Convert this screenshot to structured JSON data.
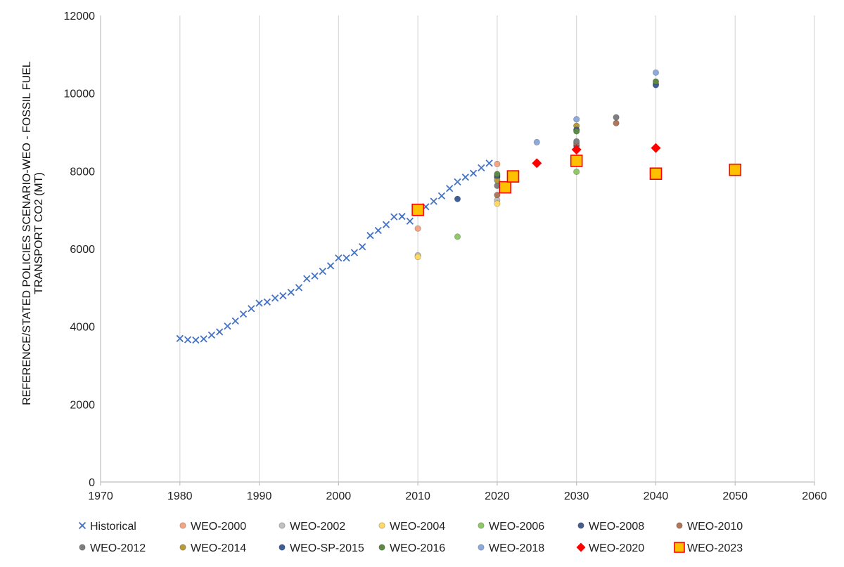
{
  "chart_data": {
    "type": "scatter",
    "title": "",
    "xlabel": "",
    "ylabel_lines": [
      "REFERENCE/STATED POLICIES SCENARIO-WEO - FOSSIL FUEL",
      "TRANSPORT CO2 (MT)"
    ],
    "xlim": [
      1970,
      2060
    ],
    "ylim": [
      0,
      12000
    ],
    "xticks": [
      1970,
      1980,
      1990,
      2000,
      2010,
      2020,
      2030,
      2040,
      2050,
      2060
    ],
    "yticks": [
      0,
      2000,
      4000,
      6000,
      8000,
      10000,
      12000
    ],
    "grid": "vertical",
    "legend_position": "bottom",
    "series": [
      {
        "name": "Historical",
        "marker": "x",
        "color": "#4472c4",
        "x": [
          1980,
          1981,
          1982,
          1983,
          1984,
          1985,
          1986,
          1987,
          1988,
          1989,
          1990,
          1991,
          1992,
          1993,
          1994,
          1995,
          1996,
          1997,
          1998,
          1999,
          2000,
          2001,
          2002,
          2003,
          2004,
          2005,
          2006,
          2007,
          2008,
          2009,
          2010,
          2011,
          2012,
          2013,
          2014,
          2015,
          2016,
          2017,
          2018,
          2019
        ],
        "y": [
          3690,
          3660,
          3650,
          3680,
          3780,
          3860,
          4010,
          4140,
          4320,
          4460,
          4600,
          4630,
          4730,
          4790,
          4880,
          5000,
          5230,
          5300,
          5420,
          5560,
          5760,
          5760,
          5900,
          6050,
          6340,
          6470,
          6620,
          6820,
          6830,
          6710,
          6960,
          7080,
          7220,
          7360,
          7550,
          7720,
          7840,
          7940,
          8080,
          8200
        ]
      },
      {
        "name": "WEO-2000",
        "marker": "circle",
        "color": "#f4a582",
        "x": [
          2010,
          2020
        ],
        "y": [
          6520,
          8180
        ]
      },
      {
        "name": "WEO-2002",
        "marker": "circle",
        "color": "#c0c0c0",
        "x": [
          2010,
          2020
        ],
        "y": [
          5830,
          7250
        ]
      },
      {
        "name": "WEO-2004",
        "marker": "circle",
        "color": "#ffd966",
        "x": [
          2010,
          2020
        ],
        "y": [
          5790,
          7160
        ]
      },
      {
        "name": "WEO-2006",
        "marker": "circle",
        "color": "#8fc965",
        "x": [
          2015,
          2030
        ],
        "y": [
          6310,
          7980
        ]
      },
      {
        "name": "WEO-2008",
        "marker": "circle",
        "color": "#4a5e8c",
        "x": [
          2020,
          2030
        ],
        "y": [
          7840,
          8650
        ]
      },
      {
        "name": "WEO-2010",
        "marker": "circle",
        "color": "#b0785a",
        "x": [
          2020,
          2030,
          2035
        ],
        "y": [
          7380,
          8710,
          9230
        ]
      },
      {
        "name": "WEO-2012",
        "marker": "circle",
        "color": "#7f7f7f",
        "x": [
          2020,
          2030,
          2035
        ],
        "y": [
          7620,
          8760,
          9380
        ]
      },
      {
        "name": "WEO-2014",
        "marker": "circle",
        "color": "#b89b3c",
        "x": [
          2020,
          2030,
          2040
        ],
        "y": [
          7760,
          9160,
          10230
        ]
      },
      {
        "name": "WEO-SP-2015",
        "marker": "circle",
        "color": "#3d5f99",
        "x": [
          2015,
          2020,
          2030,
          2040
        ],
        "y": [
          7280,
          7880,
          9060,
          10210
        ]
      },
      {
        "name": "WEO-2016",
        "marker": "circle",
        "color": "#5c8a46",
        "x": [
          2020,
          2030,
          2040
        ],
        "y": [
          7920,
          9020,
          10300
        ]
      },
      {
        "name": "WEO-2018",
        "marker": "circle",
        "color": "#8eaadb",
        "x": [
          2025,
          2030,
          2040
        ],
        "y": [
          8740,
          9330,
          10530
        ]
      },
      {
        "name": "WEO-2020",
        "marker": "diamond",
        "color": "#ff0000",
        "x": [
          2025,
          2030,
          2040
        ],
        "y": [
          8200,
          8550,
          8590
        ]
      },
      {
        "name": "WEO-2023",
        "marker": "square",
        "color": "#ffc000",
        "x": [
          2010,
          2021,
          2022,
          2030,
          2040,
          2050
        ],
        "y": [
          7000,
          7580,
          7860,
          8260,
          7930,
          8030
        ]
      }
    ]
  }
}
